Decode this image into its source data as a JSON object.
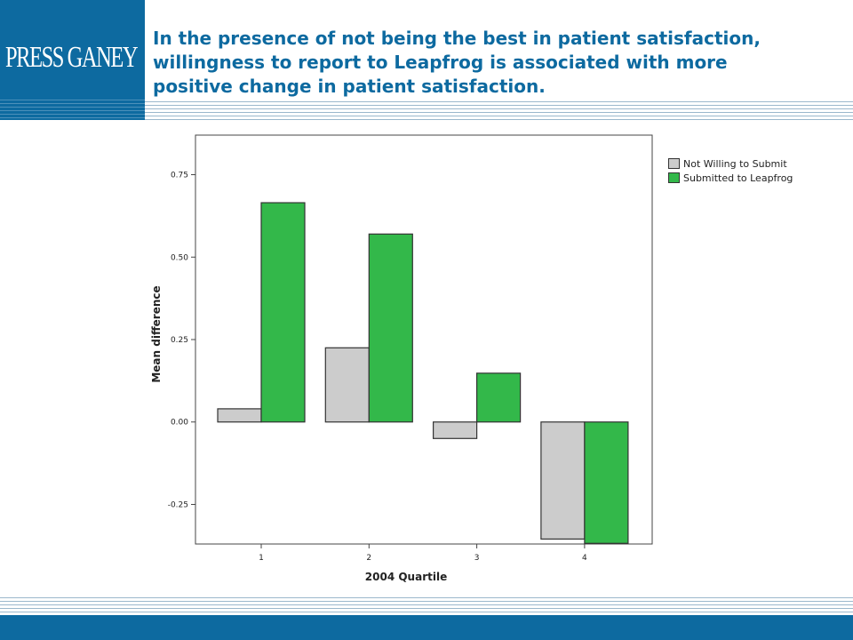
{
  "header": {
    "logo_text": "PRESS GANEY",
    "title_lines": [
      "In the presence of not being the best in patient satisfaction,",
      "willingness to report to Leapfrog is associated with more",
      "positive change in patient satisfaction."
    ]
  },
  "colors": {
    "brand_blue": "#0d6aa0",
    "series_not_willing": "#cccccc",
    "series_submitted": "#33b84a"
  },
  "chart_data": {
    "type": "bar",
    "categories": [
      "1",
      "2",
      "3",
      "4"
    ],
    "xlabel": "2004 Quartile",
    "ylabel": "Mean difference",
    "ylim": [
      -0.37,
      0.87
    ],
    "yticks": [
      "0.75",
      "0.50",
      "0.25",
      "0.00",
      "-0.25"
    ],
    "ytick_values": [
      0.75,
      0.5,
      0.25,
      0.0,
      -0.25
    ],
    "legend_position": "right",
    "series": [
      {
        "name": "Not Willing to Submit",
        "values": [
          0.04,
          0.225,
          -0.05,
          -0.355
        ]
      },
      {
        "name": "Submitted to Leapfrog",
        "values": [
          0.665,
          0.57,
          0.148,
          -0.368
        ]
      }
    ]
  }
}
